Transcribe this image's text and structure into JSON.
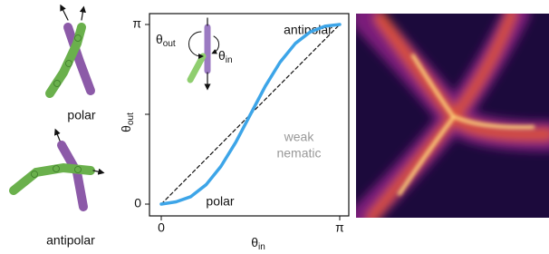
{
  "left_panel": {
    "labels": [
      "polar",
      "antipolar"
    ]
  },
  "chart_data": {
    "type": "line",
    "x_label": {
      "symbol": "θ",
      "subscript": "in"
    },
    "y_label": {
      "symbol": "θ",
      "subscript": "out"
    },
    "x": [
      0,
      0.26,
      0.52,
      0.79,
      1.05,
      1.31,
      1.57,
      1.83,
      2.09,
      2.36,
      2.62,
      2.88,
      3.14
    ],
    "series": [
      {
        "color": "#3da5e8",
        "style": "solid",
        "values": [
          0,
          0.04,
          0.13,
          0.34,
          0.66,
          1.08,
          1.57,
          2.06,
          2.48,
          2.81,
          3.01,
          3.11,
          3.14
        ]
      },
      {
        "color": "#111111",
        "style": "dashed",
        "values": [
          0,
          0.26,
          0.52,
          0.79,
          1.05,
          1.31,
          1.57,
          1.83,
          2.09,
          2.36,
          2.62,
          2.88,
          3.14
        ]
      }
    ],
    "xlim": [
      0,
      3.14
    ],
    "ylim": [
      0,
      3.14
    ],
    "xticks": [
      0,
      {
        "value": 3.14,
        "label": "π"
      }
    ],
    "yticks": [
      0,
      {
        "value": 1.57,
        "label": ""
      },
      {
        "value": 3.14,
        "label": "π"
      }
    ],
    "annotations": {
      "antipolar": "antipolar",
      "weak_nematic": [
        "weak",
        "nematic"
      ],
      "polar": "polar"
    },
    "inset": {
      "out_symbol": "θ",
      "out_sub": "out",
      "in_symbol": "θ",
      "in_sub": "in"
    }
  }
}
